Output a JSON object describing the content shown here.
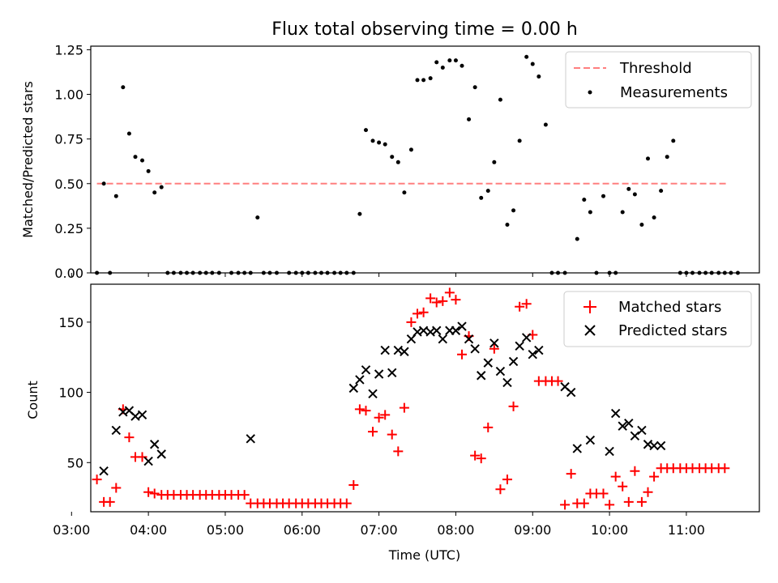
{
  "figure_title": "Flux total observing time = 0.00 h",
  "chart_data": [
    {
      "type": "scatter",
      "ylabel": "Matched/Predicted stars",
      "xlim": [
        3.25,
        11.95
      ],
      "ylim": [
        0,
        1.27
      ],
      "y_ticks": [
        0,
        0.25,
        0.5,
        0.75,
        1.0,
        1.25
      ],
      "y_tick_labels": [
        "0.00",
        "0.25",
        "0.50",
        "0.75",
        "1.00",
        "1.25"
      ],
      "legend_position": "top-right",
      "threshold": {
        "name": "Threshold",
        "value": 0.5,
        "x_range": [
          3.33,
          11.53
        ],
        "color": "#ff7f7f"
      },
      "series": [
        {
          "name": "Measurements",
          "marker": "dot",
          "color": "#000000",
          "points": [
            [
              3.33,
              0
            ],
            [
              3.42,
              0.5
            ],
            [
              3.5,
              0
            ],
            [
              3.58,
              0.43
            ],
            [
              3.67,
              1.04
            ],
            [
              3.75,
              0.78
            ],
            [
              3.83,
              0.65
            ],
            [
              3.92,
              0.63
            ],
            [
              4.0,
              0.57
            ],
            [
              4.08,
              0.45
            ],
            [
              4.17,
              0.48
            ],
            [
              4.25,
              0
            ],
            [
              4.33,
              0
            ],
            [
              4.42,
              0
            ],
            [
              4.5,
              0
            ],
            [
              4.58,
              0
            ],
            [
              4.67,
              0
            ],
            [
              4.75,
              0
            ],
            [
              4.83,
              0
            ],
            [
              4.92,
              0
            ],
            [
              5.08,
              0
            ],
            [
              5.17,
              0
            ],
            [
              5.25,
              0
            ],
            [
              5.33,
              0
            ],
            [
              5.42,
              0.31
            ],
            [
              5.5,
              0
            ],
            [
              5.58,
              0
            ],
            [
              5.67,
              0
            ],
            [
              5.83,
              0
            ],
            [
              5.92,
              0
            ],
            [
              6.0,
              0
            ],
            [
              6.08,
              0
            ],
            [
              6.17,
              0
            ],
            [
              6.25,
              0
            ],
            [
              6.33,
              0
            ],
            [
              6.42,
              0
            ],
            [
              6.5,
              0
            ],
            [
              6.58,
              0
            ],
            [
              6.67,
              0
            ],
            [
              6.75,
              0.33
            ],
            [
              6.83,
              0.8
            ],
            [
              6.92,
              0.74
            ],
            [
              7.0,
              0.73
            ],
            [
              7.08,
              0.72
            ],
            [
              7.17,
              0.65
            ],
            [
              7.25,
              0.62
            ],
            [
              7.33,
              0.45
            ],
            [
              7.42,
              0.69
            ],
            [
              7.5,
              1.08
            ],
            [
              7.58,
              1.08
            ],
            [
              7.67,
              1.09
            ],
            [
              7.75,
              1.18
            ],
            [
              7.83,
              1.15
            ],
            [
              7.92,
              1.19
            ],
            [
              8.0,
              1.19
            ],
            [
              8.08,
              1.16
            ],
            [
              8.17,
              0.86
            ],
            [
              8.25,
              1.04
            ],
            [
              8.33,
              0.42
            ],
            [
              8.42,
              0.46
            ],
            [
              8.5,
              0.62
            ],
            [
              8.58,
              0.97
            ],
            [
              8.67,
              0.27
            ],
            [
              8.75,
              0.35
            ],
            [
              8.83,
              0.74
            ],
            [
              8.92,
              1.21
            ],
            [
              9.0,
              1.17
            ],
            [
              9.08,
              1.1
            ],
            [
              9.17,
              0.83
            ],
            [
              9.25,
              0
            ],
            [
              9.33,
              0
            ],
            [
              9.42,
              0
            ],
            [
              9.58,
              0.19
            ],
            [
              9.67,
              0.41
            ],
            [
              9.75,
              0.34
            ],
            [
              9.83,
              0
            ],
            [
              9.92,
              0.43
            ],
            [
              10.0,
              0
            ],
            [
              10.08,
              0
            ],
            [
              10.17,
              0.34
            ],
            [
              10.25,
              0.47
            ],
            [
              10.33,
              0.44
            ],
            [
              10.42,
              0.27
            ],
            [
              10.5,
              0.64
            ],
            [
              10.58,
              0.31
            ],
            [
              10.67,
              0.46
            ],
            [
              10.75,
              0.65
            ],
            [
              10.83,
              0.74
            ],
            [
              10.92,
              0
            ],
            [
              11.0,
              0
            ],
            [
              11.08,
              0
            ],
            [
              11.17,
              0
            ],
            [
              11.25,
              0
            ],
            [
              11.33,
              0
            ],
            [
              11.42,
              0
            ],
            [
              11.5,
              0
            ],
            [
              11.58,
              0
            ],
            [
              11.67,
              0
            ]
          ]
        }
      ]
    },
    {
      "type": "scatter",
      "xlabel": "Time (UTC)",
      "ylabel": "Count",
      "xlim": [
        3.25,
        11.95
      ],
      "ylim": [
        15,
        177
      ],
      "x_ticks": [
        3,
        4,
        5,
        6,
        7,
        8,
        9,
        10,
        11
      ],
      "x_tick_labels": [
        "03:00",
        "04:00",
        "05:00",
        "06:00",
        "07:00",
        "08:00",
        "09:00",
        "10:00",
        "11:00"
      ],
      "y_ticks": [
        50,
        100,
        150
      ],
      "y_tick_labels": [
        "50",
        "100",
        "150"
      ],
      "legend_position": "top-right",
      "series": [
        {
          "name": "Matched stars",
          "marker": "plus",
          "color": "#ff0000",
          "points": [
            [
              3.33,
              38
            ],
            [
              3.42,
              22
            ],
            [
              3.5,
              22
            ],
            [
              3.58,
              32
            ],
            [
              3.67,
              88
            ],
            [
              3.75,
              68
            ],
            [
              3.83,
              54
            ],
            [
              3.92,
              54
            ],
            [
              4.0,
              29
            ],
            [
              4.08,
              28
            ],
            [
              4.17,
              27
            ],
            [
              4.25,
              27
            ],
            [
              4.33,
              27
            ],
            [
              4.42,
              27
            ],
            [
              4.5,
              27
            ],
            [
              4.58,
              27
            ],
            [
              4.67,
              27
            ],
            [
              4.75,
              27
            ],
            [
              4.83,
              27
            ],
            [
              4.92,
              27
            ],
            [
              5.0,
              27
            ],
            [
              5.08,
              27
            ],
            [
              5.17,
              27
            ],
            [
              5.25,
              27
            ],
            [
              5.33,
              21
            ],
            [
              5.42,
              21
            ],
            [
              5.5,
              21
            ],
            [
              5.58,
              21
            ],
            [
              5.67,
              21
            ],
            [
              5.75,
              21
            ],
            [
              5.83,
              21
            ],
            [
              5.92,
              21
            ],
            [
              6.0,
              21
            ],
            [
              6.08,
              21
            ],
            [
              6.17,
              21
            ],
            [
              6.25,
              21
            ],
            [
              6.33,
              21
            ],
            [
              6.42,
              21
            ],
            [
              6.5,
              21
            ],
            [
              6.58,
              21
            ],
            [
              6.67,
              34
            ],
            [
              6.75,
              88
            ],
            [
              6.83,
              87
            ],
            [
              6.92,
              72
            ],
            [
              7.0,
              82
            ],
            [
              7.08,
              84
            ],
            [
              7.17,
              70
            ],
            [
              7.25,
              58
            ],
            [
              7.33,
              89
            ],
            [
              7.42,
              150
            ],
            [
              7.5,
              156
            ],
            [
              7.58,
              157
            ],
            [
              7.67,
              167
            ],
            [
              7.75,
              164
            ],
            [
              7.83,
              165
            ],
            [
              7.92,
              171
            ],
            [
              8.0,
              166
            ],
            [
              8.08,
              127
            ],
            [
              8.17,
              140
            ],
            [
              8.25,
              55
            ],
            [
              8.33,
              53
            ],
            [
              8.42,
              75
            ],
            [
              8.5,
              131
            ],
            [
              8.58,
              31
            ],
            [
              8.67,
              38
            ],
            [
              8.75,
              90
            ],
            [
              8.83,
              161
            ],
            [
              8.92,
              163
            ],
            [
              9.0,
              141
            ],
            [
              9.08,
              108
            ],
            [
              9.17,
              108
            ],
            [
              9.25,
              108
            ],
            [
              9.33,
              108
            ],
            [
              9.42,
              20
            ],
            [
              9.5,
              42
            ],
            [
              9.58,
              21
            ],
            [
              9.67,
              21
            ],
            [
              9.75,
              28
            ],
            [
              9.83,
              28
            ],
            [
              9.92,
              28
            ],
            [
              10.0,
              20
            ],
            [
              10.08,
              40
            ],
            [
              10.17,
              33
            ],
            [
              10.25,
              22
            ],
            [
              10.33,
              44
            ],
            [
              10.42,
              22
            ],
            [
              10.5,
              29
            ],
            [
              10.58,
              40
            ],
            [
              10.67,
              46
            ],
            [
              10.75,
              46
            ],
            [
              10.83,
              46
            ],
            [
              10.92,
              46
            ],
            [
              11.0,
              46
            ],
            [
              11.08,
              46
            ],
            [
              11.17,
              46
            ],
            [
              11.25,
              46
            ],
            [
              11.33,
              46
            ],
            [
              11.42,
              46
            ],
            [
              11.5,
              46
            ]
          ]
        },
        {
          "name": "Predicted stars",
          "marker": "x",
          "color": "#000000",
          "points": [
            [
              3.42,
              44
            ],
            [
              3.58,
              73
            ],
            [
              3.67,
              86
            ],
            [
              3.75,
              87
            ],
            [
              3.83,
              83
            ],
            [
              3.92,
              84
            ],
            [
              4.0,
              51
            ],
            [
              4.08,
              63
            ],
            [
              4.17,
              56
            ],
            [
              5.33,
              67
            ],
            [
              6.67,
              103
            ],
            [
              6.75,
              109
            ],
            [
              6.83,
              116
            ],
            [
              6.92,
              99
            ],
            [
              7.0,
              113
            ],
            [
              7.08,
              130
            ],
            [
              7.17,
              114
            ],
            [
              7.25,
              130
            ],
            [
              7.33,
              129
            ],
            [
              7.42,
              138
            ],
            [
              7.5,
              143
            ],
            [
              7.58,
              144
            ],
            [
              7.67,
              143
            ],
            [
              7.75,
              144
            ],
            [
              7.83,
              138
            ],
            [
              7.92,
              144
            ],
            [
              8.0,
              144
            ],
            [
              8.08,
              147
            ],
            [
              8.17,
              138
            ],
            [
              8.25,
              131
            ],
            [
              8.33,
              112
            ],
            [
              8.42,
              121
            ],
            [
              8.5,
              135
            ],
            [
              8.58,
              115
            ],
            [
              8.67,
              107
            ],
            [
              8.75,
              122
            ],
            [
              8.83,
              133
            ],
            [
              8.92,
              139
            ],
            [
              9.0,
              127
            ],
            [
              9.08,
              130
            ],
            [
              9.42,
              104
            ],
            [
              9.5,
              100
            ],
            [
              9.58,
              60
            ],
            [
              9.75,
              66
            ],
            [
              10.0,
              58
            ],
            [
              10.08,
              85
            ],
            [
              10.17,
              76
            ],
            [
              10.25,
              78
            ],
            [
              10.33,
              69
            ],
            [
              10.42,
              73
            ],
            [
              10.5,
              63
            ],
            [
              10.58,
              62
            ],
            [
              10.67,
              62
            ]
          ]
        }
      ]
    }
  ]
}
